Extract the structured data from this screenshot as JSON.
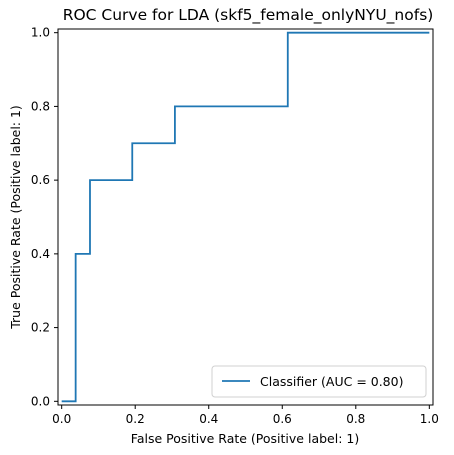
{
  "chart_data": {
    "type": "line",
    "title": "ROC Curve for LDA (skf5_female_onlyNYU_nofs)",
    "xlabel": "False Positive Rate (Positive label: 1)",
    "ylabel": "True Positive Rate (Positive label: 1)",
    "xlim": [
      -0.01,
      1.01
    ],
    "ylim": [
      -0.01,
      1.01
    ],
    "xticks": [
      0.0,
      0.2,
      0.4,
      0.6,
      0.8,
      1.0
    ],
    "yticks": [
      0.0,
      0.2,
      0.4,
      0.6,
      0.8,
      1.0
    ],
    "xtick_labels": [
      "0.0",
      "0.2",
      "0.4",
      "0.6",
      "0.8",
      "1.0"
    ],
    "ytick_labels": [
      "0.0",
      "0.2",
      "0.4",
      "0.6",
      "0.8",
      "1.0"
    ],
    "grid": false,
    "legend_position": "lower-right",
    "series": [
      {
        "name": "Classifier (AUC = 0.80)",
        "color": "#1f77b4",
        "x": [
          0.0,
          0.038,
          0.038,
          0.077,
          0.077,
          0.192,
          0.192,
          0.308,
          0.308,
          0.615,
          0.615,
          1.0
        ],
        "y": [
          0.0,
          0.0,
          0.4,
          0.4,
          0.6,
          0.6,
          0.7,
          0.7,
          0.8,
          0.8,
          1.0,
          1.0
        ]
      }
    ]
  }
}
